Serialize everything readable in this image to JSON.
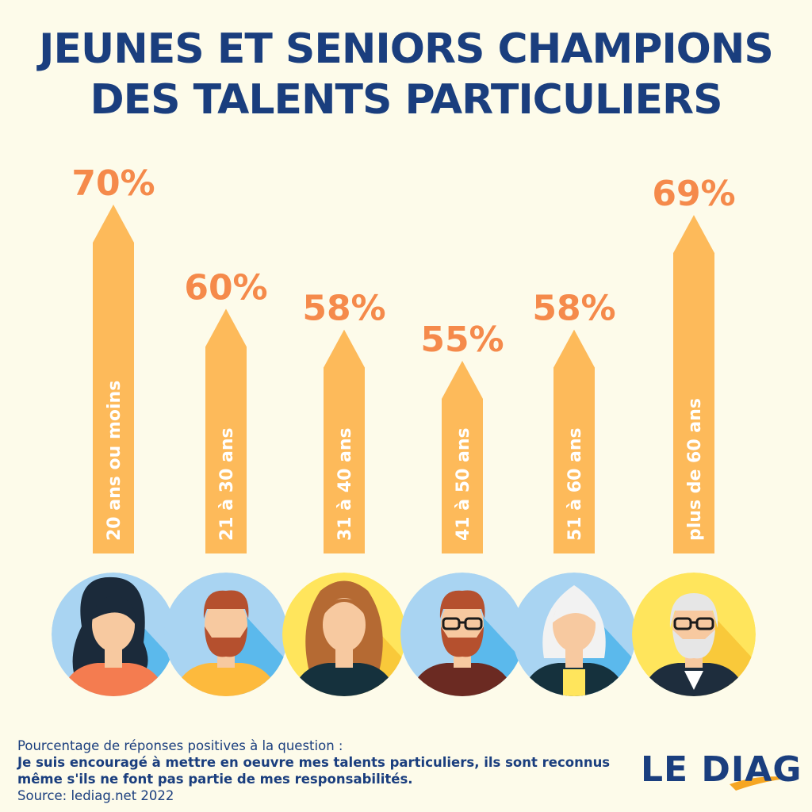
{
  "title": {
    "line1": "JEUNES ET SENIORS CHAMPIONS",
    "line2": "DES TALENTS PARTICULIERS"
  },
  "chart_data": {
    "type": "bar",
    "categories": [
      "20 ans ou moins",
      "21 à 30 ans",
      "31 à 40 ans",
      "41 à 50 ans",
      "51 à 60 ans",
      "plus de 60 ans"
    ],
    "values": [
      70,
      60,
      58,
      55,
      58,
      69
    ],
    "value_labels": [
      "70%",
      "60%",
      "58%",
      "55%",
      "58%",
      "69%"
    ],
    "unit": "%",
    "title": "JEUNES ET SENIORS CHAMPIONS DES TALENTS PARTICULIERS",
    "bar_color": "#FDBA5A",
    "label_color": "#F58A4B"
  },
  "footer": {
    "intro": "Pourcentage de réponses positives à la question :",
    "question": "Je suis encouragé à mettre en oeuvre mes talents particuliers, ils sont reconnus même s'ils ne font pas partie de mes responsabilités.",
    "source": "Source: lediag.net 2022"
  },
  "logo": {
    "text": "LE DIAG"
  },
  "avatars": [
    {
      "icon": "young-woman-avatar-icon",
      "bg": "#A9D4F2",
      "shadow": "#5BB9EC",
      "shirt": "#F47C50",
      "hair": "#1B2A3A"
    },
    {
      "icon": "bearded-man-avatar-icon",
      "bg": "#A9D4F2",
      "shadow": "#5BB9EC",
      "shirt": "#FDBA3D",
      "hair": "#B5502E"
    },
    {
      "icon": "woman-avatar-icon",
      "bg": "#FFE55C",
      "shadow": "#F9C93A",
      "shirt": "#15313D",
      "hair": "#B56A33"
    },
    {
      "icon": "man-glasses-avatar-icon",
      "bg": "#A9D4F2",
      "shadow": "#5BB9EC",
      "shirt": "#6B2A22",
      "hair": "#B5502E"
    },
    {
      "icon": "older-woman-avatar-icon",
      "bg": "#A9D4F2",
      "shadow": "#5BB9EC",
      "shirt": "#15313D",
      "hair": "#F2F2F2"
    },
    {
      "icon": "senior-man-avatar-icon",
      "bg": "#FFE55C",
      "shadow": "#F9C93A",
      "shirt": "#1E2D3D",
      "hair": "#E6E6E6"
    }
  ]
}
